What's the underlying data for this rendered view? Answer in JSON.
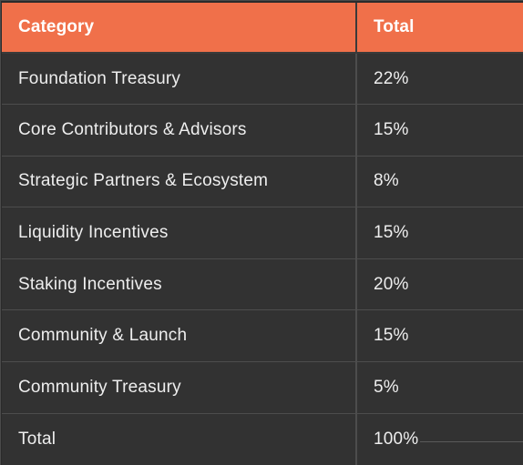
{
  "table": {
    "headers": [
      "Category",
      "Total"
    ],
    "rows": [
      {
        "category": "Foundation Treasury",
        "total": "22%"
      },
      {
        "category": "Core Contributors & Advisors",
        "total": "15%"
      },
      {
        "category": "Strategic Partners & Ecosystem",
        "total": "8%"
      },
      {
        "category": "Liquidity Incentives",
        "total": "15%"
      },
      {
        "category": "Staking Incentives",
        "total": "20%"
      },
      {
        "category": "Community & Launch",
        "total": "15%"
      },
      {
        "category": "Community Treasury",
        "total": "5%"
      },
      {
        "category": "Total",
        "total": "100%"
      }
    ]
  },
  "colors": {
    "header_background": "#f0704a",
    "body_background": "#323232",
    "text": "#eeeeee"
  }
}
